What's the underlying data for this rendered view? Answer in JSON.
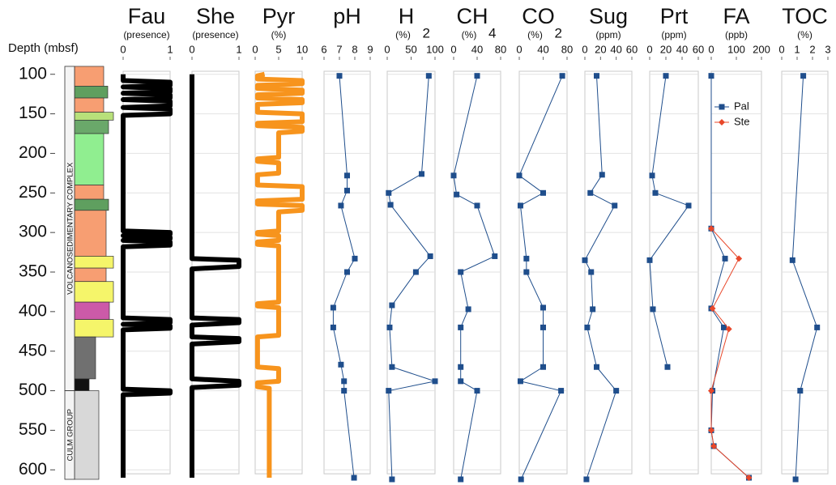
{
  "chart_data": [
    {
      "type": "lithology",
      "ylabel": "Depth (mbsf)",
      "ylim": [
        88,
        612
      ],
      "yticks": [
        100,
        150,
        200,
        250,
        300,
        350,
        400,
        450,
        500,
        550,
        600
      ],
      "layers": [
        {
          "top": 90,
          "bottom": 115,
          "color": "#f79e72"
        },
        {
          "top": 115,
          "bottom": 130,
          "color": "#5f9f5f"
        },
        {
          "top": 130,
          "bottom": 148,
          "color": "#f79e72"
        },
        {
          "top": 148,
          "bottom": 158,
          "color": "#b8e07a"
        },
        {
          "top": 158,
          "bottom": 175,
          "color": "#6aa86a"
        },
        {
          "top": 175,
          "bottom": 240,
          "color": "#90ee90"
        },
        {
          "top": 240,
          "bottom": 258,
          "color": "#f79e72"
        },
        {
          "top": 258,
          "bottom": 272,
          "color": "#5f9f5f"
        },
        {
          "top": 272,
          "bottom": 330,
          "color": "#f79e72"
        },
        {
          "top": 330,
          "bottom": 345,
          "color": "#f5f56a"
        },
        {
          "top": 345,
          "bottom": 362,
          "color": "#f79e72"
        },
        {
          "top": 362,
          "bottom": 388,
          "color": "#f5f56a"
        },
        {
          "top": 388,
          "bottom": 410,
          "color": "#cc5aa8"
        },
        {
          "top": 410,
          "bottom": 432,
          "color": "#f5f56a"
        },
        {
          "top": 432,
          "bottom": 485,
          "color": "#707070"
        },
        {
          "top": 485,
          "bottom": 500,
          "color": "#111111"
        },
        {
          "top": 500,
          "bottom": 612,
          "color": "#d8d8d8"
        }
      ],
      "groups": [
        {
          "label": "VOLCANOSEDIMENTARY COMPLEX",
          "top": 90,
          "bottom": 500
        },
        {
          "label": "CULM GROUP",
          "top": 500,
          "bottom": 612
        }
      ]
    },
    {
      "type": "step",
      "title": "Fau",
      "unit": "(presence)",
      "xlim": [
        0,
        1
      ],
      "xticks": [
        0,
        1
      ],
      "color": "#000000",
      "depth": [
        100,
        108,
        110,
        114,
        116,
        118,
        122,
        124,
        126,
        130,
        132,
        134,
        140,
        142,
        144,
        150,
        152,
        298,
        300,
        302,
        304,
        306,
        308,
        310,
        312,
        316,
        318,
        408,
        410,
        414,
        416,
        418,
        421,
        423,
        498,
        500,
        503,
        505,
        610
      ],
      "values": [
        0,
        0,
        1,
        1,
        0,
        1,
        1,
        0,
        1,
        1,
        0,
        1,
        1,
        0,
        1,
        1,
        0,
        0,
        1,
        1,
        0,
        1,
        1,
        0,
        1,
        1,
        0,
        0,
        1,
        1,
        0,
        1,
        1,
        0,
        0,
        1,
        1,
        0,
        0
      ]
    },
    {
      "type": "step",
      "title": "She",
      "unit": "(presence)",
      "xlim": [
        0,
        1
      ],
      "xticks": [
        0,
        1
      ],
      "color": "#000000",
      "depth": [
        100,
        333,
        335,
        343,
        346,
        408,
        410,
        414,
        417,
        432,
        434,
        438,
        441,
        485,
        488,
        493,
        496,
        610
      ],
      "values": [
        0,
        0,
        1,
        1,
        0,
        0,
        1,
        1,
        0,
        0,
        1,
        1,
        0,
        0,
        1,
        1,
        0,
        0
      ]
    },
    {
      "type": "step",
      "title": "Pyr",
      "unit": "(%)",
      "xlim": [
        0,
        10
      ],
      "xticks": [
        0,
        5,
        10
      ],
      "color": "#f7941d",
      "depth": [
        100,
        102,
        106,
        108,
        112,
        114,
        118,
        120,
        124,
        126,
        130,
        132,
        136,
        138,
        148,
        150,
        160,
        162,
        165,
        167,
        172,
        174,
        205,
        207,
        210,
        212,
        225,
        227,
        240,
        242,
        258,
        260,
        264,
        266,
        272,
        274,
        298,
        300,
        302,
        304,
        310,
        312,
        315,
        317,
        388,
        390,
        393,
        395,
        430,
        432,
        470,
        472,
        488,
        490,
        495,
        497,
        610
      ],
      "values": [
        2,
        0.5,
        0.5,
        10,
        10,
        0.5,
        0.5,
        10,
        10,
        0.5,
        0.5,
        10,
        10,
        0.5,
        0.5,
        10,
        10,
        0.5,
        0.5,
        10,
        10,
        5,
        5,
        0.5,
        0.5,
        5,
        5,
        0.5,
        0.5,
        10,
        10,
        0.5,
        0.5,
        10,
        10,
        5,
        5,
        0.5,
        0.5,
        5,
        5,
        0.5,
        0.5,
        5,
        5,
        0.5,
        0.5,
        5,
        5,
        0.5,
        0.5,
        5,
        5,
        0.5,
        0.5,
        3,
        3
      ]
    },
    {
      "type": "line",
      "title": "pH",
      "xlim": [
        6,
        9
      ],
      "xticks": [
        6,
        7,
        8,
        9
      ],
      "color": "#1f4e8c",
      "marker": "square",
      "depth": [
        102,
        228,
        247,
        266,
        333,
        350,
        395,
        420,
        467,
        488,
        500,
        610
      ],
      "values": [
        7.0,
        7.5,
        7.5,
        7.1,
        8.0,
        7.5,
        6.6,
        6.6,
        7.1,
        7.3,
        7.3,
        7.95
      ]
    },
    {
      "type": "line",
      "title": "H",
      "title_sub": "2",
      "unit": "(%)",
      "xlim": [
        0,
        100
      ],
      "xticks": [
        0,
        50,
        100
      ],
      "color": "#1f4e8c",
      "marker": "square",
      "depth": [
        102,
        226,
        250,
        265,
        330,
        350,
        392,
        420,
        470,
        488,
        500,
        612
      ],
      "values": [
        87,
        72,
        3,
        7,
        90,
        60,
        10,
        5,
        10,
        100,
        3,
        10
      ]
    },
    {
      "type": "line",
      "title": "CH",
      "title_sub": "4",
      "unit": "(%)",
      "xlim": [
        0,
        80
      ],
      "xticks": [
        0,
        40,
        80
      ],
      "color": "#1f4e8c",
      "marker": "square",
      "depth": [
        102,
        228,
        252,
        266,
        330,
        350,
        397,
        420,
        470,
        488,
        500,
        612
      ],
      "values": [
        40,
        0,
        5,
        40,
        70,
        12,
        25,
        12,
        12,
        12,
        40,
        12
      ]
    },
    {
      "type": "line",
      "title": "CO",
      "title_sub": "2",
      "unit": "(%)",
      "xlim": [
        0,
        80
      ],
      "xticks": [
        0,
        40,
        80
      ],
      "color": "#1f4e8c",
      "marker": "square",
      "depth": [
        102,
        228,
        250,
        266,
        333,
        350,
        395,
        420,
        470,
        488,
        500,
        612
      ],
      "values": [
        72,
        0,
        40,
        2,
        12,
        12,
        40,
        40,
        40,
        2,
        70,
        3
      ]
    },
    {
      "type": "line",
      "title": "Sug",
      "unit": "(ppm)",
      "xlim": [
        0,
        60
      ],
      "xticks": [
        0,
        20,
        40,
        60
      ],
      "color": "#1f4e8c",
      "marker": "square",
      "depth": [
        102,
        227,
        250,
        266,
        335,
        350,
        397,
        420,
        470,
        500,
        612
      ],
      "values": [
        15,
        22,
        7,
        38,
        0,
        8,
        10,
        3,
        15,
        40,
        2
      ]
    },
    {
      "type": "line",
      "title": "Prt",
      "unit": "(ppm)",
      "xlim": [
        0,
        60
      ],
      "xticks": [
        0,
        20,
        40,
        60
      ],
      "color": "#1f4e8c",
      "marker": "square",
      "depth": [
        102,
        228,
        250,
        266,
        335,
        397,
        470
      ],
      "values": [
        20,
        3,
        7,
        48,
        0,
        4,
        22
      ]
    },
    {
      "type": "multi",
      "title": "FA",
      "unit": "(ppb)",
      "xlim": [
        0,
        200
      ],
      "xticks": [
        0,
        100,
        200
      ],
      "legend": "upper right",
      "series": [
        {
          "name": "Pal",
          "color": "#1f4e8c",
          "marker": "square",
          "depth": [
            102,
            295,
            333,
            396,
            420,
            500,
            550,
            570,
            610
          ],
          "values": [
            0,
            0,
            55,
            0,
            50,
            5,
            0,
            10,
            150
          ]
        },
        {
          "name": "Ste",
          "color": "#e8472a",
          "marker": "diamond",
          "depth": [
            295,
            333,
            396,
            422,
            500,
            550,
            570,
            610
          ],
          "values": [
            0,
            110,
            5,
            70,
            0,
            0,
            10,
            150
          ]
        }
      ]
    },
    {
      "type": "line",
      "title": "TOC",
      "unit": "(%)",
      "xlim": [
        0,
        3
      ],
      "xticks": [
        0,
        1,
        2,
        3
      ],
      "color": "#1f4e8c",
      "marker": "square",
      "depth": [
        102,
        335,
        420,
        500,
        612
      ],
      "values": [
        1.4,
        0.7,
        2.3,
        1.2,
        0.9
      ]
    }
  ]
}
